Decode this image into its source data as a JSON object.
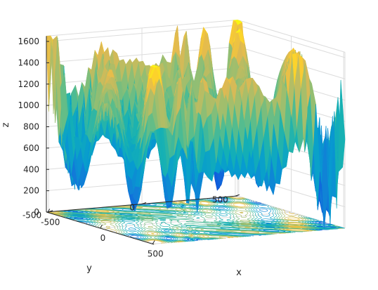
{
  "chart_data": {
    "type": "surface",
    "title": "",
    "xlabel": "x",
    "ylabel": "y",
    "zlabel": "z",
    "xlim": [
      -512,
      512
    ],
    "ylim": [
      -512,
      512
    ],
    "zlim": [
      0,
      1650
    ],
    "xticks": [
      {
        "value": -500,
        "label": "-500"
      },
      {
        "value": 0,
        "label": "0"
      },
      {
        "value": 500,
        "label": "500"
      }
    ],
    "yticks": [
      {
        "value": -500,
        "label": "-500"
      },
      {
        "value": 0,
        "label": "0"
      },
      {
        "value": 500,
        "label": "500"
      }
    ],
    "zticks": [
      {
        "value": 0,
        "label": "0"
      },
      {
        "value": 200,
        "label": "200"
      },
      {
        "value": 400,
        "label": "400"
      },
      {
        "value": 600,
        "label": "600"
      },
      {
        "value": 800,
        "label": "800"
      },
      {
        "value": 1000,
        "label": "1000"
      },
      {
        "value": 1200,
        "label": "1200"
      },
      {
        "value": 1400,
        "label": "1400"
      },
      {
        "value": 1600,
        "label": "1600"
      }
    ],
    "grid": true,
    "colormap": "parula",
    "contour_on_floor": true,
    "colors": {
      "axis": "#262626",
      "grid": "#dcdcdc"
    }
  }
}
